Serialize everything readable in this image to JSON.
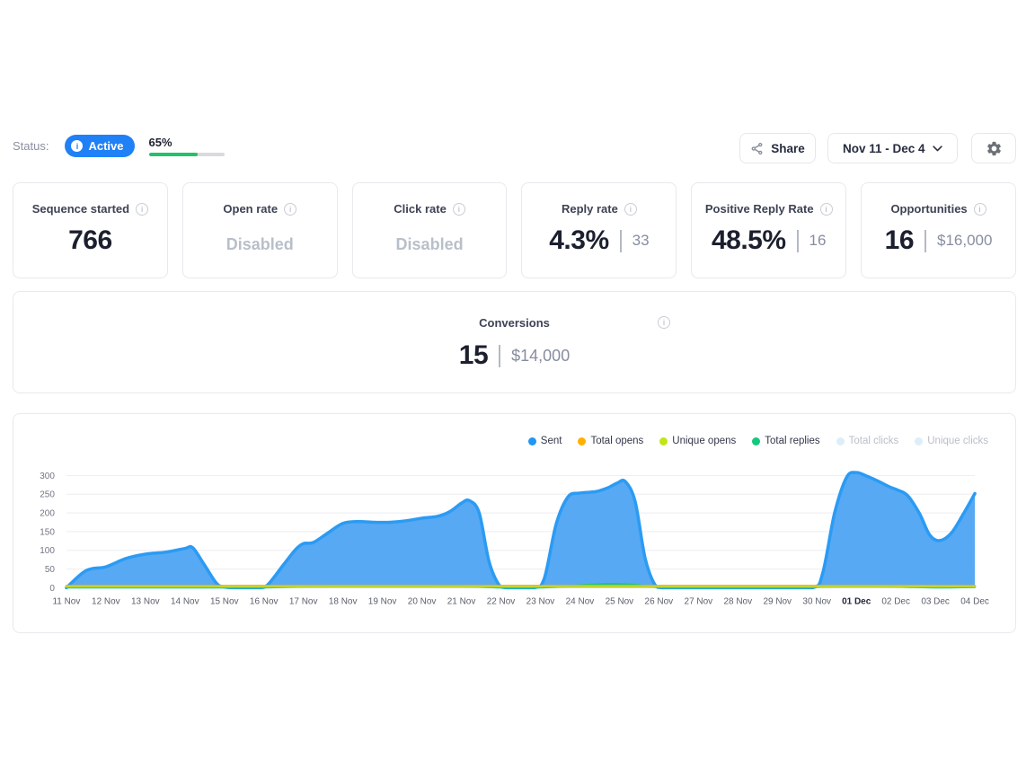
{
  "icons": {
    "info": "i"
  },
  "status_bar": {
    "label": "Status:",
    "badge": {
      "text": "Active",
      "color": "#2080f6"
    },
    "progress": {
      "percent_label": "65%",
      "percent": 65,
      "fill_color": "#25c06c",
      "track_color": "#d9dadd"
    }
  },
  "toolbar": {
    "share_label": "Share",
    "date_range_label": "Nov 11 - Dec 4"
  },
  "stat_cards": [
    {
      "title": "Sequence started",
      "value": "766"
    },
    {
      "title": "Open rate",
      "disabled_text": "Disabled"
    },
    {
      "title": "Click rate",
      "disabled_text": "Disabled"
    },
    {
      "title": "Reply rate",
      "value": "4.3%",
      "secondary": "33"
    },
    {
      "title": "Positive Reply Rate",
      "value": "48.5%",
      "secondary": "16"
    },
    {
      "title": "Opportunities",
      "value": "16",
      "secondary": "$16,000"
    }
  ],
  "conversions_card": {
    "title": "Conversions",
    "value": "15",
    "secondary": "$14,000"
  },
  "chart_data": {
    "type": "area",
    "categories": [
      "11 Nov",
      "12 Nov",
      "13 Nov",
      "14 Nov",
      "15 Nov",
      "16 Nov",
      "17 Nov",
      "18 Nov",
      "19 Nov",
      "20 Nov",
      "21 Nov",
      "22 Nov",
      "23 Nov",
      "24 Nov",
      "25 Nov",
      "26 Nov",
      "27 Nov",
      "28 Nov",
      "29 Nov",
      "30 Nov",
      "01 Dec",
      "02 Dec",
      "03 Dec",
      "04 Dec"
    ],
    "bold_category": "01 Dec",
    "ylim": [
      0,
      300
    ],
    "yticks": [
      0,
      50,
      100,
      150,
      200,
      250,
      300
    ],
    "grid_color": "#ededf0",
    "legend": [
      {
        "label": "Sent",
        "color": "#2196f3",
        "disabled": false
      },
      {
        "label": "Total opens",
        "color": "#ffb000",
        "disabled": false
      },
      {
        "label": "Unique opens",
        "color": "#c0e616",
        "disabled": false
      },
      {
        "label": "Total replies",
        "color": "#12c97d",
        "disabled": false
      },
      {
        "label": "Total clicks",
        "color": "#ddeef9",
        "disabled": true
      },
      {
        "label": "Unique clicks",
        "color": "#ddeef9",
        "disabled": true
      }
    ],
    "series": [
      {
        "name": "Sent",
        "color": "#2b9bf4",
        "fill": "#57a9f3",
        "width": 3.5,
        "points": [
          [
            0,
            0
          ],
          [
            0.5,
            46
          ],
          [
            1,
            56
          ],
          [
            1.5,
            78
          ],
          [
            2,
            90
          ],
          [
            2.5,
            95
          ],
          [
            3,
            105
          ],
          [
            3.2,
            107
          ],
          [
            3.5,
            60
          ],
          [
            3.8,
            12
          ],
          [
            4,
            2
          ],
          [
            4.3,
            0
          ],
          [
            4.9,
            0
          ],
          [
            5.1,
            8
          ],
          [
            5.5,
            62
          ],
          [
            5.8,
            102
          ],
          [
            6,
            118
          ],
          [
            6.25,
            121
          ],
          [
            6.6,
            145
          ],
          [
            7,
            172
          ],
          [
            7.4,
            177
          ],
          [
            7.8,
            175
          ],
          [
            8.2,
            175
          ],
          [
            8.6,
            179
          ],
          [
            9,
            186
          ],
          [
            9.4,
            191
          ],
          [
            9.7,
            203
          ],
          [
            10,
            226
          ],
          [
            10.2,
            233
          ],
          [
            10.45,
            200
          ],
          [
            10.7,
            70
          ],
          [
            10.95,
            8
          ],
          [
            11.15,
            0
          ],
          [
            11.85,
            0
          ],
          [
            12.1,
            25
          ],
          [
            12.4,
            170
          ],
          [
            12.7,
            243
          ],
          [
            13,
            253
          ],
          [
            13.4,
            257
          ],
          [
            13.7,
            267
          ],
          [
            13.95,
            280
          ],
          [
            14.15,
            284
          ],
          [
            14.4,
            230
          ],
          [
            14.65,
            80
          ],
          [
            14.9,
            8
          ],
          [
            15.1,
            0
          ],
          [
            16,
            0
          ],
          [
            17,
            0
          ],
          [
            18,
            0
          ],
          [
            18.9,
            0
          ],
          [
            19.15,
            40
          ],
          [
            19.45,
            200
          ],
          [
            19.75,
            295
          ],
          [
            20,
            308
          ],
          [
            20.25,
            299
          ],
          [
            20.55,
            285
          ],
          [
            20.85,
            269
          ],
          [
            21.05,
            261
          ],
          [
            21.3,
            246
          ],
          [
            21.6,
            198
          ],
          [
            21.85,
            142
          ],
          [
            22.1,
            126
          ],
          [
            22.4,
            146
          ],
          [
            22.7,
            196
          ],
          [
            23,
            252
          ]
        ]
      },
      {
        "name": "Total replies",
        "color": "#14c87c",
        "width": 2.5,
        "points": [
          [
            0,
            1
          ],
          [
            2,
            1
          ],
          [
            4,
            1
          ],
          [
            5,
            1
          ],
          [
            6,
            3
          ],
          [
            7,
            4
          ],
          [
            8,
            4
          ],
          [
            9,
            4
          ],
          [
            10,
            4
          ],
          [
            11,
            1
          ],
          [
            12,
            1
          ],
          [
            12.7,
            4
          ],
          [
            13.3,
            8
          ],
          [
            13.8,
            10
          ],
          [
            14.3,
            8
          ],
          [
            14.8,
            3
          ],
          [
            15.3,
            1
          ],
          [
            17,
            1
          ],
          [
            18.6,
            1
          ],
          [
            19.2,
            3
          ],
          [
            20,
            4
          ],
          [
            21,
            3
          ],
          [
            22,
            1
          ],
          [
            23,
            2
          ]
        ]
      },
      {
        "name": "Total opens",
        "color": "#e2ac25",
        "width": 2.5,
        "points": [
          [
            0,
            5
          ],
          [
            23,
            5
          ]
        ]
      },
      {
        "name": "Unique opens",
        "color": "#c6d32a",
        "width": 2.5,
        "points": [
          [
            0,
            3.5
          ],
          [
            23,
            3.5
          ]
        ]
      }
    ]
  }
}
